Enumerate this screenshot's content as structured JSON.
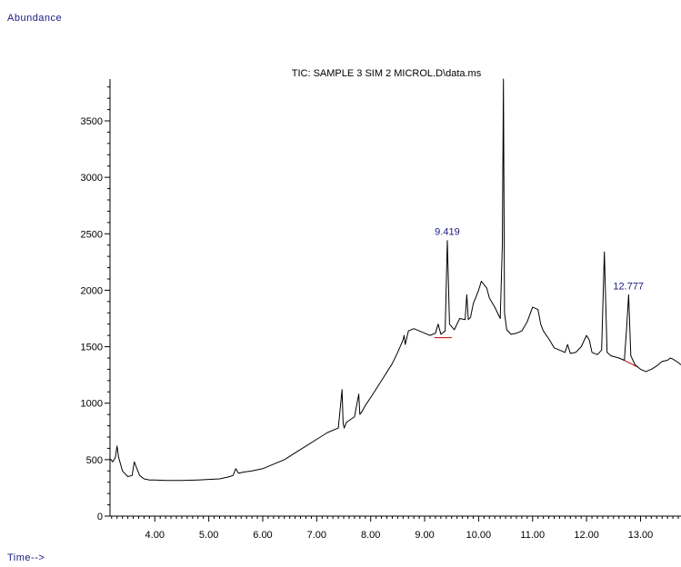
{
  "y_axis_caption": "Abundance",
  "x_axis_caption": "Time-->",
  "chart_data": {
    "type": "line",
    "title": "TIC: SAMPLE 3 SIM 2 MICROL.D\\data.ms",
    "xlabel": "Time-->",
    "ylabel": "Abundance",
    "xlim": [
      3.17,
      13.75
    ],
    "ylim": [
      0,
      3870
    ],
    "x_ticks": [
      4.0,
      5.0,
      6.0,
      7.0,
      8.0,
      9.0,
      10.0,
      11.0,
      12.0,
      13.0
    ],
    "x_tick_labels": [
      "4.00",
      "5.00",
      "6.00",
      "7.00",
      "8.00",
      "9.00",
      "10.00",
      "11.00",
      "12.00",
      "13.00"
    ],
    "y_ticks": [
      0,
      500,
      1000,
      1500,
      2000,
      2500,
      3000,
      3500
    ],
    "y_tick_labels": [
      "0",
      "500",
      "1000",
      "1500",
      "2000",
      "2500",
      "3000",
      "3500"
    ],
    "colors": {
      "trace": "#000000",
      "baseline": "#c00000",
      "peak_label": "#1a1a80"
    },
    "series": [
      {
        "x": [
          3.17,
          3.22,
          3.27,
          3.3,
          3.33,
          3.4,
          3.5,
          3.58,
          3.62,
          3.66,
          3.72,
          3.8,
          3.9,
          4.0,
          4.2,
          4.5,
          4.8,
          5.0,
          5.2,
          5.35,
          5.45,
          5.5,
          5.55,
          5.65,
          5.8,
          6.0,
          6.2,
          6.4,
          6.6,
          6.8,
          7.0,
          7.2,
          7.4,
          7.47,
          7.49,
          7.51,
          7.55,
          7.7,
          7.78,
          7.8,
          7.83,
          7.9,
          8.0,
          8.2,
          8.4,
          8.5,
          8.6,
          8.62,
          8.64,
          8.7,
          8.8,
          8.9,
          9.0,
          9.1,
          9.2,
          9.25,
          9.3,
          9.38,
          9.42,
          9.46,
          9.55,
          9.65,
          9.75,
          9.78,
          9.81,
          9.85,
          9.9,
          10.0,
          10.05,
          10.1,
          10.15,
          10.2,
          10.3,
          10.4,
          10.44,
          10.46,
          10.48,
          10.52,
          10.6,
          10.7,
          10.8,
          10.9,
          11.0,
          11.1,
          11.15,
          11.2,
          11.3,
          11.4,
          11.6,
          11.65,
          11.7,
          11.8,
          11.9,
          12.0,
          12.05,
          12.1,
          12.2,
          12.28,
          12.33,
          12.38,
          12.45,
          12.6,
          12.7,
          12.74,
          12.78,
          12.82,
          12.9,
          13.0,
          13.1,
          13.2,
          13.3,
          13.4,
          13.5,
          13.55,
          13.6,
          13.7,
          13.75
        ],
        "y": [
          510,
          480,
          520,
          620,
          520,
          400,
          350,
          360,
          480,
          430,
          360,
          330,
          320,
          320,
          315,
          315,
          320,
          325,
          330,
          345,
          360,
          420,
          380,
          390,
          400,
          420,
          460,
          500,
          560,
          620,
          680,
          740,
          780,
          1120,
          820,
          780,
          830,
          880,
          1080,
          900,
          920,
          980,
          1050,
          1200,
          1350,
          1450,
          1560,
          1600,
          1520,
          1640,
          1660,
          1640,
          1620,
          1600,
          1620,
          1700,
          1610,
          1640,
          2440,
          1700,
          1650,
          1750,
          1740,
          1960,
          1740,
          1760,
          1880,
          2000,
          2080,
          2050,
          2020,
          1930,
          1850,
          1750,
          2400,
          3870,
          1800,
          1650,
          1610,
          1620,
          1640,
          1720,
          1850,
          1830,
          1700,
          1640,
          1570,
          1490,
          1450,
          1520,
          1440,
          1450,
          1500,
          1600,
          1560,
          1450,
          1430,
          1470,
          2340,
          1450,
          1420,
          1400,
          1380,
          1640,
          1960,
          1420,
          1340,
          1300,
          1280,
          1300,
          1330,
          1370,
          1380,
          1400,
          1390,
          1360,
          1340
        ]
      }
    ],
    "annotations": [
      {
        "text": "9.419",
        "x": 9.419,
        "y": 2440
      },
      {
        "text": "12.777",
        "x": 12.777,
        "y": 1960
      }
    ],
    "baselines": [
      {
        "x": [
          9.18,
          9.5
        ],
        "y": [
          1580,
          1580
        ]
      },
      {
        "x": [
          12.65,
          12.95
        ],
        "y": [
          1390,
          1320
        ]
      }
    ],
    "grid": false,
    "legend": "none"
  }
}
